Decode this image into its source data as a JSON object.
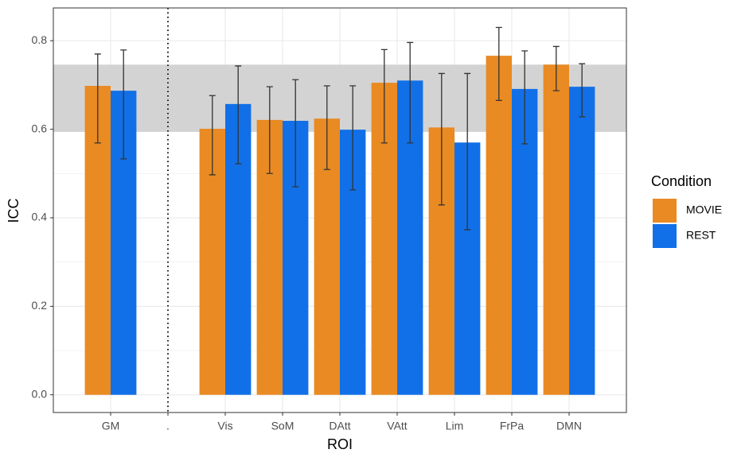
{
  "chart_data": {
    "type": "bar",
    "x_label": "ROI",
    "y_label": "ICC",
    "categories": [
      "GM",
      ".",
      "Vis",
      "SoM",
      "DAtt",
      "VAtt",
      "Lim",
      "FrPa",
      "DMN"
    ],
    "series": [
      {
        "name": "MOVIE",
        "color": "#e98a22",
        "values": [
          0.698,
          null,
          0.601,
          0.621,
          0.624,
          0.705,
          0.604,
          0.766,
          0.746
        ],
        "lower": [
          0.569,
          null,
          0.497,
          0.5,
          0.509,
          0.569,
          0.429,
          0.665,
          0.687
        ],
        "upper": [
          0.77,
          null,
          0.676,
          0.696,
          0.698,
          0.78,
          0.726,
          0.83,
          0.787
        ]
      },
      {
        "name": "REST",
        "color": "#1170e8",
        "values": [
          0.687,
          null,
          0.657,
          0.619,
          0.599,
          0.71,
          0.57,
          0.691,
          0.696
        ],
        "lower": [
          0.533,
          null,
          0.522,
          0.47,
          0.463,
          0.569,
          0.373,
          0.567,
          0.628
        ],
        "upper": [
          0.779,
          null,
          0.743,
          0.712,
          0.698,
          0.796,
          0.726,
          0.777,
          0.748
        ]
      }
    ],
    "legend_title": "Condition",
    "legend": "right",
    "ylim": [
      -0.04,
      0.874
    ],
    "yticks": [
      {
        "value": 0,
        "label": "0.0"
      },
      0.2,
      0.4,
      0.6,
      0.8
    ],
    "minor_yticks": [
      0.1,
      0.3,
      0.5,
      0.7
    ],
    "grid": true,
    "reference_band": [
      0.594,
      0.746
    ],
    "band_color": "#d3d3d3",
    "divider_category": "."
  }
}
